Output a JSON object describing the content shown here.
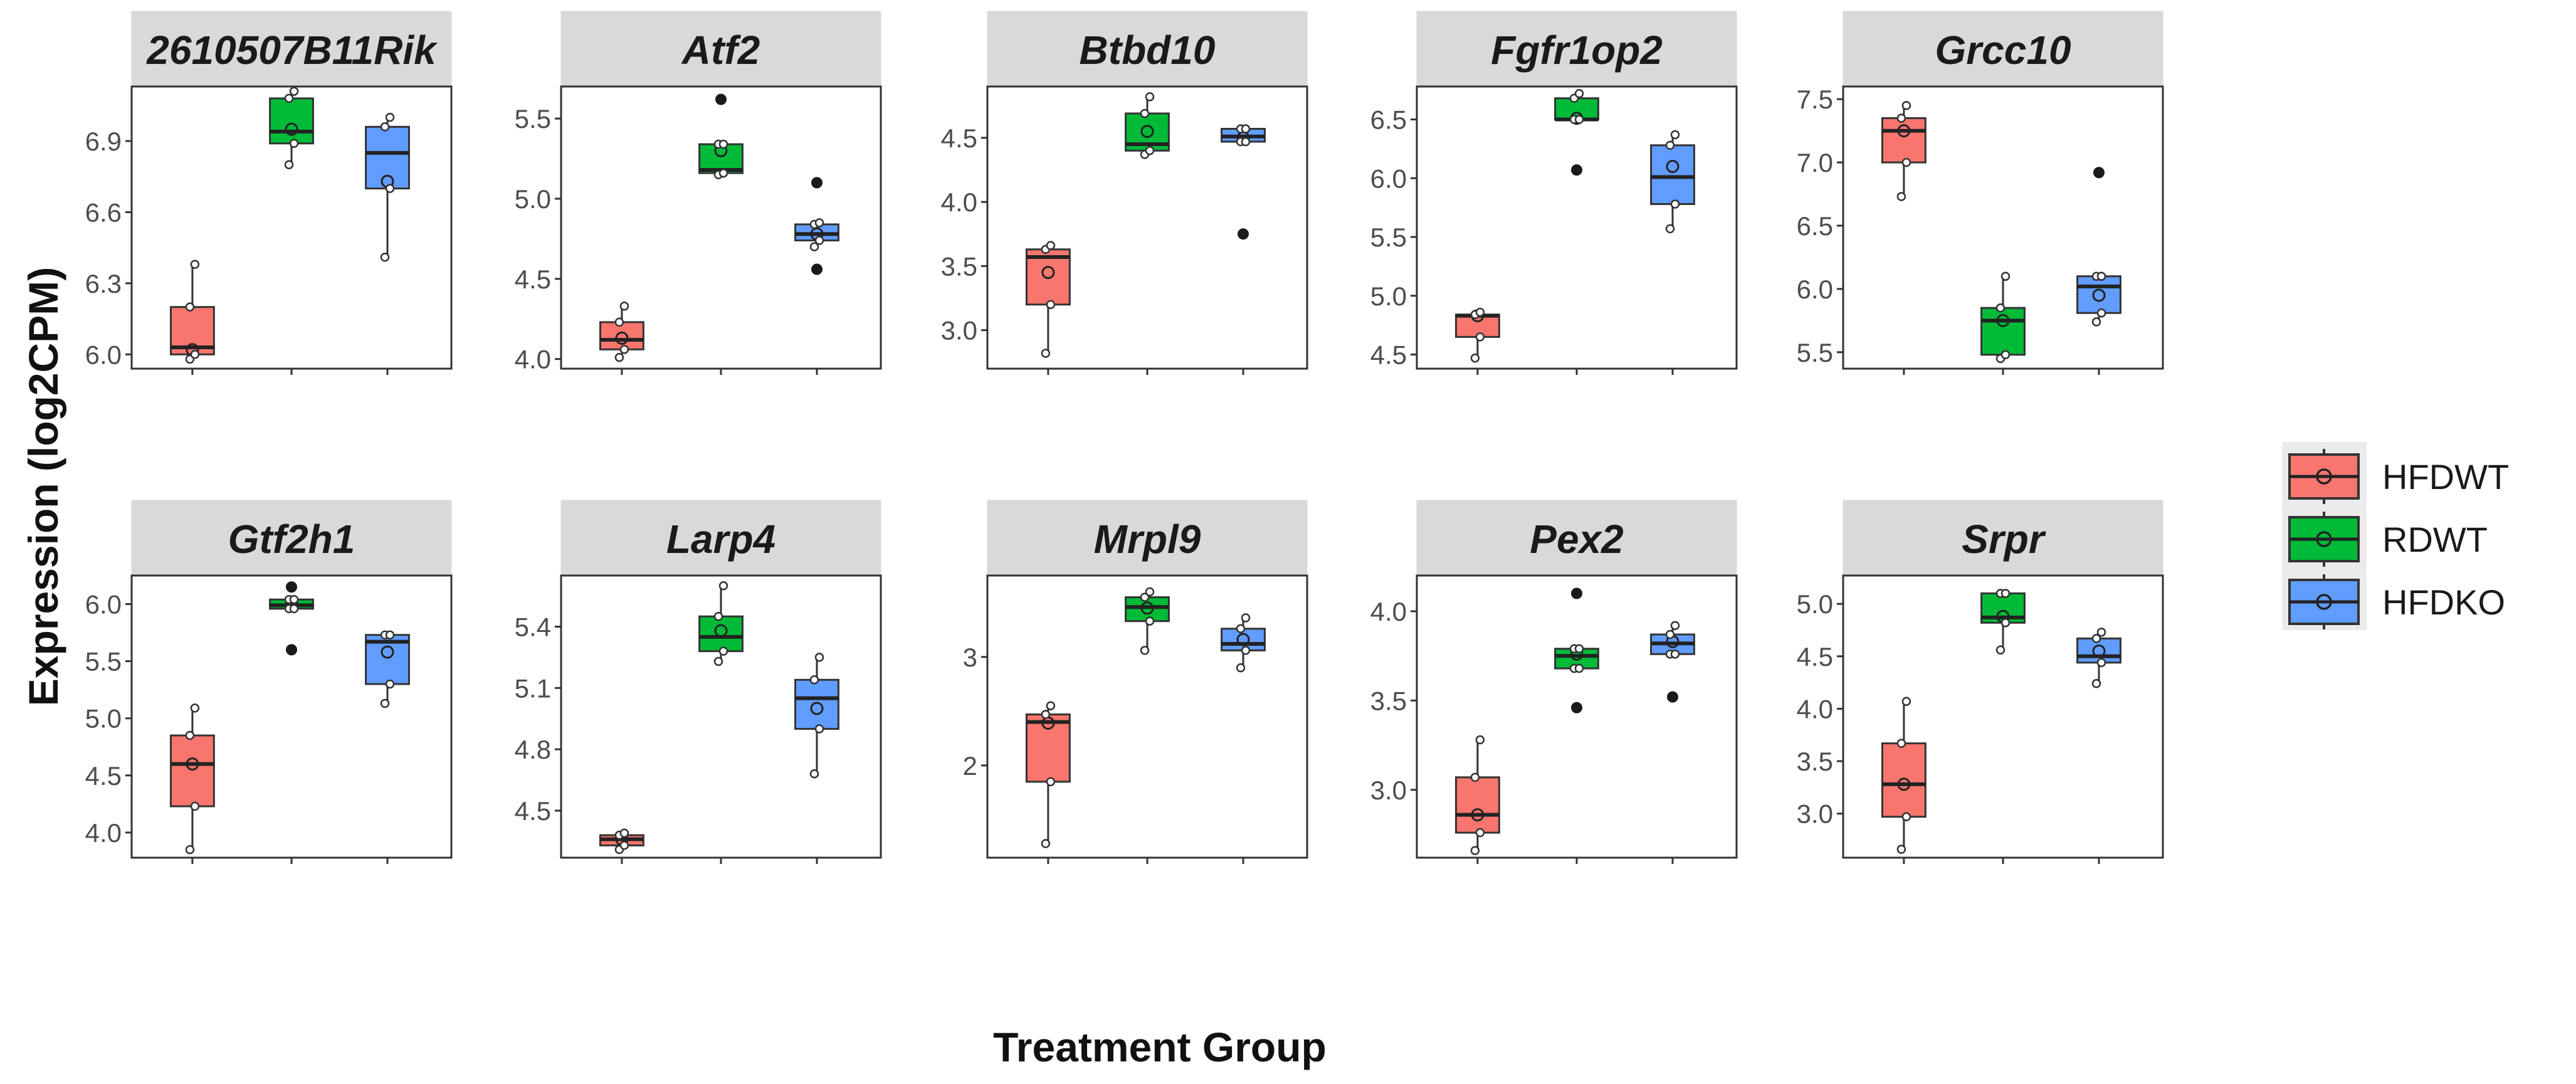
{
  "chart_data": {
    "type": "box",
    "ylabel": "Expression (log2CPM)",
    "xlabel": "Treatment Group",
    "legend": {
      "position": "right",
      "items": [
        {
          "label": "HFDWT",
          "color": "#F8766D"
        },
        {
          "label": "RDWT",
          "color": "#00BA38"
        },
        {
          "label": "HFDKO",
          "color": "#619CFF"
        }
      ]
    },
    "groups": [
      "HFDWT",
      "RDWT",
      "HFDKO"
    ],
    "panels": [
      {
        "title": "2610507B11Rik",
        "ylim": [
          5.94,
          7.13
        ],
        "ticks": [
          6.0,
          6.3,
          6.6,
          6.9
        ],
        "tick_labels": [
          "6.0",
          "6.3",
          "6.6",
          "6.9"
        ],
        "boxes": [
          {
            "group": "HFDWT",
            "lo": 5.98,
            "q1": 6.0,
            "med": 6.03,
            "q3": 6.2,
            "hi": 6.38,
            "mean": 6.02,
            "outliers": []
          },
          {
            "group": "RDWT",
            "lo": 6.8,
            "q1": 6.89,
            "med": 6.94,
            "q3": 7.08,
            "hi": 7.11,
            "mean": 6.95,
            "outliers": []
          },
          {
            "group": "HFDKO",
            "lo": 6.41,
            "q1": 6.7,
            "med": 6.85,
            "q3": 6.96,
            "hi": 7.0,
            "mean": 6.73,
            "outliers": []
          }
        ]
      },
      {
        "title": "Atf2",
        "ylim": [
          3.94,
          5.7
        ],
        "ticks": [
          4.0,
          4.5,
          5.0,
          5.5
        ],
        "tick_labels": [
          "4.0",
          "4.5",
          "5.0",
          "5.5"
        ],
        "boxes": [
          {
            "group": "HFDWT",
            "lo": 4.01,
            "q1": 4.06,
            "med": 4.12,
            "q3": 4.23,
            "hi": 4.33,
            "mean": 4.13,
            "outliers": []
          },
          {
            "group": "RDWT",
            "lo": 5.15,
            "q1": 5.16,
            "med": 5.18,
            "q3": 5.34,
            "hi": 5.34,
            "mean": 5.3,
            "outliers": [
              5.62
            ]
          },
          {
            "group": "HFDKO",
            "lo": 4.7,
            "q1": 4.74,
            "med": 4.78,
            "q3": 4.84,
            "hi": 4.85,
            "mean": 4.78,
            "outliers": [
              5.1,
              4.56
            ]
          }
        ]
      },
      {
        "title": "Btbd10",
        "ylim": [
          2.7,
          4.9
        ],
        "ticks": [
          3.0,
          3.5,
          4.0,
          4.5
        ],
        "tick_labels": [
          "3.0",
          "3.5",
          "4.0",
          "4.5"
        ],
        "boxes": [
          {
            "group": "HFDWT",
            "lo": 2.82,
            "q1": 3.2,
            "med": 3.57,
            "q3": 3.63,
            "hi": 3.66,
            "mean": 3.45,
            "outliers": []
          },
          {
            "group": "RDWT",
            "lo": 4.37,
            "q1": 4.4,
            "med": 4.45,
            "q3": 4.69,
            "hi": 4.82,
            "mean": 4.55,
            "outliers": []
          },
          {
            "group": "HFDKO",
            "lo": 4.47,
            "q1": 4.47,
            "med": 4.51,
            "q3": 4.57,
            "hi": 4.57,
            "mean": 4.5,
            "outliers": [
              3.75
            ]
          }
        ]
      },
      {
        "title": "Fgfr1op2",
        "ylim": [
          4.38,
          6.78
        ],
        "ticks": [
          4.5,
          5.0,
          5.5,
          6.0,
          6.5
        ],
        "tick_labels": [
          "4.5",
          "5.0",
          "5.5",
          "6.0",
          "6.5"
        ],
        "boxes": [
          {
            "group": "HFDWT",
            "lo": 4.47,
            "q1": 4.65,
            "med": 4.83,
            "q3": 4.84,
            "hi": 4.86,
            "mean": 4.83,
            "outliers": []
          },
          {
            "group": "RDWT",
            "lo": 6.5,
            "q1": 6.5,
            "med": 6.5,
            "q3": 6.68,
            "hi": 6.72,
            "mean": 6.51,
            "outliers": [
              6.07
            ]
          },
          {
            "group": "HFDKO",
            "lo": 5.57,
            "q1": 5.78,
            "med": 6.01,
            "q3": 6.28,
            "hi": 6.37,
            "mean": 6.1,
            "outliers": []
          }
        ]
      },
      {
        "title": "Grcc10",
        "ylim": [
          5.37,
          7.6
        ],
        "ticks": [
          5.5,
          6.0,
          6.5,
          7.0,
          7.5
        ],
        "tick_labels": [
          "5.5",
          "6.0",
          "6.5",
          "7.0",
          "7.5"
        ],
        "boxes": [
          {
            "group": "HFDWT",
            "lo": 6.73,
            "q1": 7.0,
            "med": 7.25,
            "q3": 7.35,
            "hi": 7.45,
            "mean": 7.25,
            "outliers": []
          },
          {
            "group": "RDWT",
            "lo": 5.45,
            "q1": 5.48,
            "med": 5.75,
            "q3": 5.85,
            "hi": 6.1,
            "mean": 5.75,
            "outliers": []
          },
          {
            "group": "HFDKO",
            "lo": 5.74,
            "q1": 5.81,
            "med": 6.02,
            "q3": 6.1,
            "hi": 6.1,
            "mean": 5.95,
            "outliers": [
              6.92
            ]
          }
        ]
      },
      {
        "title": "Gtf2h1",
        "ylim": [
          3.78,
          6.25
        ],
        "ticks": [
          4.0,
          4.5,
          5.0,
          5.5,
          6.0
        ],
        "tick_labels": [
          "4.0",
          "4.5",
          "5.0",
          "5.5",
          "6.0"
        ],
        "boxes": [
          {
            "group": "HFDWT",
            "lo": 3.85,
            "q1": 4.23,
            "med": 4.6,
            "q3": 4.85,
            "hi": 5.09,
            "mean": 4.6,
            "outliers": []
          },
          {
            "group": "RDWT",
            "lo": 5.96,
            "q1": 5.96,
            "med": 5.99,
            "q3": 6.04,
            "hi": 6.04,
            "mean": 6.0,
            "outliers": [
              6.15,
              5.6
            ]
          },
          {
            "group": "HFDKO",
            "lo": 5.13,
            "q1": 5.3,
            "med": 5.67,
            "q3": 5.73,
            "hi": 5.73,
            "mean": 5.58,
            "outliers": []
          }
        ]
      },
      {
        "title": "Larp4",
        "ylim": [
          4.27,
          5.65
        ],
        "ticks": [
          4.5,
          4.8,
          5.1,
          5.4
        ],
        "tick_labels": [
          "4.5",
          "4.8",
          "5.1",
          "5.4"
        ],
        "boxes": [
          {
            "group": "HFDWT",
            "lo": 4.31,
            "q1": 4.33,
            "med": 4.36,
            "q3": 4.38,
            "hi": 4.39,
            "mean": 4.36,
            "outliers": []
          },
          {
            "group": "RDWT",
            "lo": 5.23,
            "q1": 5.28,
            "med": 5.35,
            "q3": 5.45,
            "hi": 5.6,
            "mean": 5.38,
            "outliers": []
          },
          {
            "group": "HFDKO",
            "lo": 4.68,
            "q1": 4.9,
            "med": 5.05,
            "q3": 5.14,
            "hi": 5.25,
            "mean": 5.0,
            "outliers": []
          }
        ]
      },
      {
        "title": "Mrpl9",
        "ylim": [
          1.15,
          3.75
        ],
        "ticks": [
          2,
          3
        ],
        "tick_labels": [
          "2",
          "3"
        ],
        "boxes": [
          {
            "group": "HFDWT",
            "lo": 1.28,
            "q1": 1.85,
            "med": 2.4,
            "q3": 2.47,
            "hi": 2.55,
            "mean": 2.39,
            "outliers": []
          },
          {
            "group": "RDWT",
            "lo": 3.06,
            "q1": 3.33,
            "med": 3.46,
            "q3": 3.55,
            "hi": 3.6,
            "mean": 3.45,
            "outliers": []
          },
          {
            "group": "HFDKO",
            "lo": 2.9,
            "q1": 3.06,
            "med": 3.12,
            "q3": 3.26,
            "hi": 3.36,
            "mean": 3.16,
            "outliers": []
          }
        ]
      },
      {
        "title": "Pex2",
        "ylim": [
          2.62,
          4.2
        ],
        "ticks": [
          3.0,
          3.5,
          4.0
        ],
        "tick_labels": [
          "3.0",
          "3.5",
          "4.0"
        ],
        "boxes": [
          {
            "group": "HFDWT",
            "lo": 2.66,
            "q1": 2.76,
            "med": 2.86,
            "q3": 3.07,
            "hi": 3.28,
            "mean": 2.86,
            "outliers": []
          },
          {
            "group": "RDWT",
            "lo": 3.68,
            "q1": 3.68,
            "med": 3.75,
            "q3": 3.79,
            "hi": 3.79,
            "mean": 3.76,
            "outliers": [
              4.1,
              3.46
            ]
          },
          {
            "group": "HFDKO",
            "lo": 3.76,
            "q1": 3.76,
            "med": 3.82,
            "q3": 3.87,
            "hi": 3.92,
            "mean": 3.83,
            "outliers": [
              3.52
            ]
          }
        ]
      },
      {
        "title": "Srpr",
        "ylim": [
          2.58,
          5.27
        ],
        "ticks": [
          3.0,
          3.5,
          4.0,
          4.5,
          5.0
        ],
        "tick_labels": [
          "3.0",
          "3.5",
          "4.0",
          "4.5",
          "5.0"
        ],
        "boxes": [
          {
            "group": "HFDWT",
            "lo": 2.66,
            "q1": 2.97,
            "med": 3.28,
            "q3": 3.67,
            "hi": 4.07,
            "mean": 3.28,
            "outliers": []
          },
          {
            "group": "RDWT",
            "lo": 4.56,
            "q1": 4.82,
            "med": 4.87,
            "q3": 5.1,
            "hi": 5.1,
            "mean": 4.88,
            "outliers": []
          },
          {
            "group": "HFDKO",
            "lo": 4.24,
            "q1": 4.44,
            "med": 4.5,
            "q3": 4.67,
            "hi": 4.73,
            "mean": 4.55,
            "outliers": []
          }
        ]
      }
    ]
  }
}
